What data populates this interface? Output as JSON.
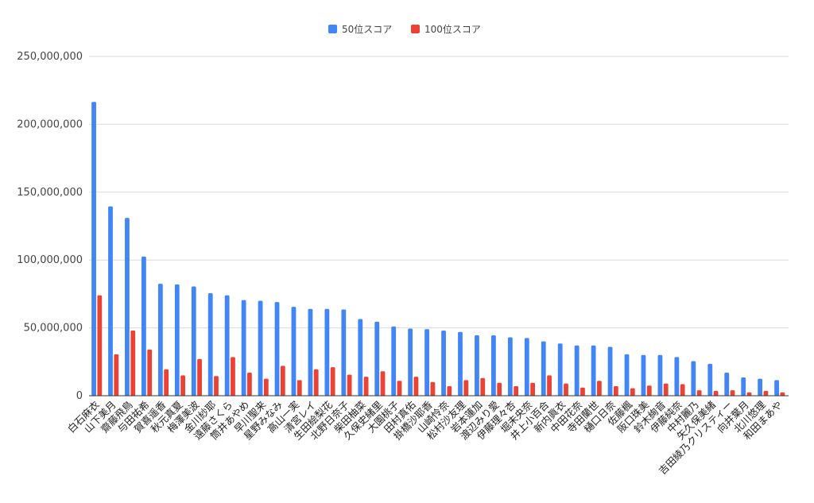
{
  "chart_data": {
    "type": "bar",
    "title": "",
    "xlabel": "",
    "ylabel": "",
    "ylim": [
      0,
      250000000
    ],
    "yticks": [
      0,
      50000000,
      100000000,
      150000000,
      200000000,
      250000000
    ],
    "ytick_labels": [
      "0",
      "50,000,000",
      "100,000,000",
      "150,000,000",
      "200,000,000",
      "250,000,000"
    ],
    "grid": true,
    "legend_position": "top-center",
    "categories": [
      "白石麻衣",
      "山下美月",
      "齋藤飛鳥",
      "与田祐希",
      "賀喜遥香",
      "秋元真夏",
      "梅澤美波",
      "金川紗耶",
      "遠藤さくら",
      "筒井あやめ",
      "早川聖来",
      "星野みなみ",
      "高山一実",
      "清宮レイ",
      "生田絵梨花",
      "北野日奈子",
      "柴田柚菜",
      "久保史緒里",
      "大園桃子",
      "田村真佑",
      "掛橋沙耶香",
      "山崎怜奈",
      "松村沙友理",
      "岩本蓮加",
      "渡辺みり愛",
      "伊藤理々杏",
      "堀未央奈",
      "井上小百合",
      "新内眞衣",
      "中田花奈",
      "寺田蘭世",
      "樋口日奈",
      "佐藤楓",
      "阪口珠美",
      "鈴木絢音",
      "伊藤純奈",
      "中村麗乃",
      "矢久保美緒",
      "吉田綾乃クリスティー",
      "向井葉月",
      "北川悠理",
      "和田まあや"
    ],
    "series": [
      {
        "name": "50位スコア",
        "color": "#4285f4",
        "values": [
          216500000,
          139500000,
          131000000,
          102500000,
          82500000,
          82000000,
          80500000,
          75500000,
          74000000,
          70500000,
          70000000,
          69000000,
          65500000,
          64000000,
          64000000,
          63500000,
          56500000,
          54500000,
          51000000,
          49500000,
          49000000,
          48000000,
          47000000,
          44500000,
          44500000,
          43000000,
          42500000,
          40000000,
          38500000,
          37000000,
          37000000,
          36000000,
          30500000,
          30000000,
          30000000,
          28500000,
          25500000,
          23500000,
          17000000,
          13500000,
          12500000,
          11500000
        ]
      },
      {
        "name": "100位スコア",
        "color": "#ea4335",
        "values": [
          74000000,
          30500000,
          48000000,
          34000000,
          19500000,
          15000000,
          27000000,
          14500000,
          28500000,
          17000000,
          12500000,
          22000000,
          11500000,
          19500000,
          21000000,
          15500000,
          14000000,
          18000000,
          11000000,
          14000000,
          10000000,
          7000000,
          11500000,
          13000000,
          9500000,
          7000000,
          9500000,
          15000000,
          9000000,
          6000000,
          11000000,
          7000000,
          5500000,
          7500000,
          9000000,
          8500000,
          4000000,
          3500000,
          4000000,
          2500000,
          3500000,
          2500000
        ]
      }
    ]
  }
}
